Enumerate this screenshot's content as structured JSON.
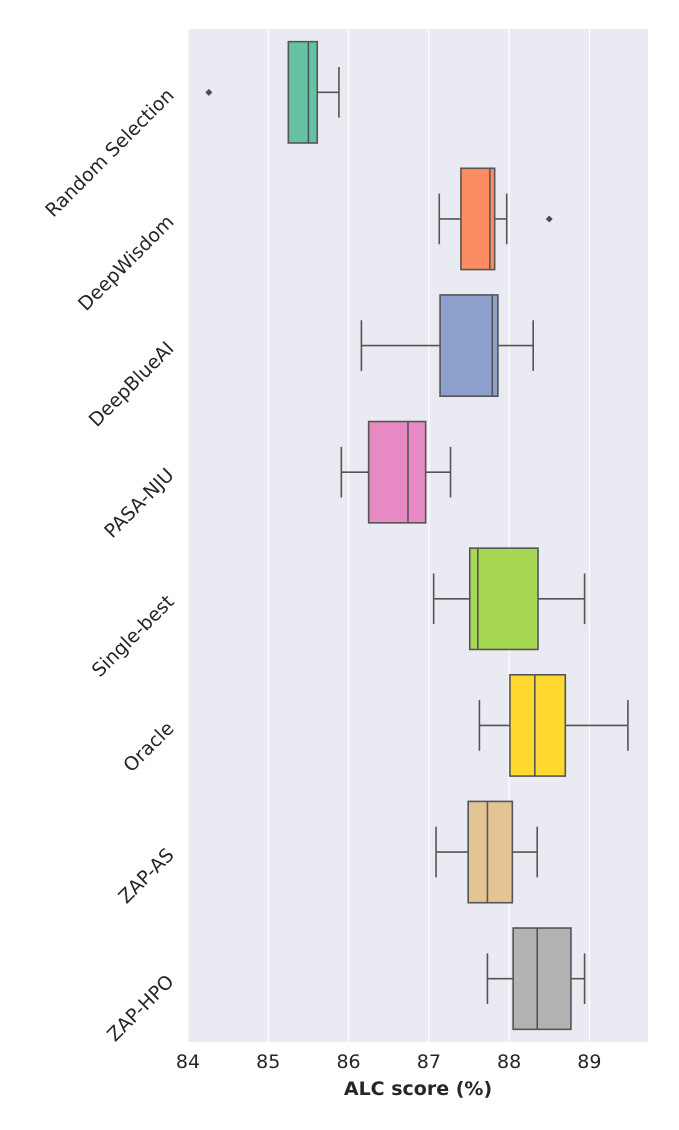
{
  "chart_data": {
    "type": "boxplot",
    "orientation": "horizontal",
    "title": "",
    "xlabel": "ALC score (%)",
    "ylabel": "",
    "xlim": [
      84.0,
      89.73
    ],
    "xticks": [
      84,
      85,
      86,
      87,
      88,
      89
    ],
    "grid": true,
    "background": "#eaeaf2",
    "gridcolor": "#ffffff",
    "edgecolor": "#555555",
    "categories": [
      "Random Selection",
      "DeepWisdom",
      "DeepBlueAI",
      "PASA-NJU",
      "Single-best",
      "Oracle",
      "ZAP-AS",
      "ZAP-HPO"
    ],
    "series": [
      {
        "name": "Random Selection",
        "color": "#66c2a5",
        "whisker_low": 85.25,
        "q1": 85.25,
        "median": 85.5,
        "q3": 85.61,
        "whisker_high": 85.88,
        "outliers": [
          84.26
        ]
      },
      {
        "name": "DeepWisdom",
        "color": "#fc8d62",
        "whisker_low": 87.13,
        "q1": 87.4,
        "median": 87.76,
        "q3": 87.82,
        "whisker_high": 87.97,
        "outliers": [
          88.5
        ]
      },
      {
        "name": "DeepBlueAI",
        "color": "#8da0cb",
        "whisker_low": 86.16,
        "q1": 87.14,
        "median": 87.79,
        "q3": 87.86,
        "whisker_high": 88.3,
        "outliers": []
      },
      {
        "name": "PASA-NJU",
        "color": "#e78ac3",
        "whisker_low": 85.91,
        "q1": 86.25,
        "median": 86.74,
        "q3": 86.96,
        "whisker_high": 87.27,
        "outliers": []
      },
      {
        "name": "Single-best",
        "color": "#a6d854",
        "whisker_low": 87.06,
        "q1": 87.51,
        "median": 87.61,
        "q3": 88.36,
        "whisker_high": 88.94,
        "outliers": []
      },
      {
        "name": "Oracle",
        "color": "#ffd92f",
        "whisker_low": 87.63,
        "q1": 88.01,
        "median": 88.32,
        "q3": 88.7,
        "whisker_high": 89.48,
        "outliers": []
      },
      {
        "name": "ZAP-AS",
        "color": "#e5c494",
        "whisker_low": 87.09,
        "q1": 87.49,
        "median": 87.73,
        "q3": 88.04,
        "whisker_high": 88.35,
        "outliers": []
      },
      {
        "name": "ZAP-HPO",
        "color": "#b3b3b3",
        "whisker_low": 87.73,
        "q1": 88.05,
        "median": 88.35,
        "q3": 88.77,
        "whisker_high": 88.94,
        "outliers": []
      }
    ]
  },
  "axes": {
    "x_title": "ALC score (%)",
    "x_tick_labels": [
      "84",
      "85",
      "86",
      "87",
      "88",
      "89"
    ]
  }
}
